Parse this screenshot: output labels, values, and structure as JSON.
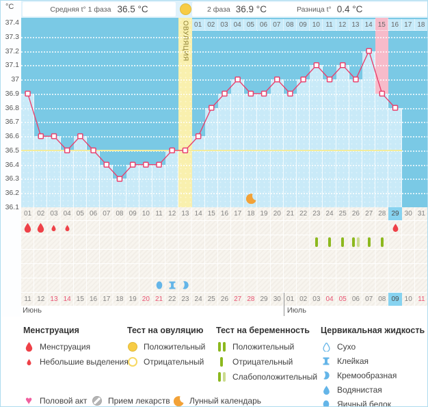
{
  "header": {
    "unit": "°C",
    "phase1_label": "Средняя t° 1 фаза",
    "phase1_value": "36.5 °C",
    "phase2_label": "2 фаза",
    "phase2_value": "36.9 °C",
    "diff_label": "Разница t°",
    "diff_value": "0.4 °C",
    "ovulation_label": "ОВУЛЯЦИЯ"
  },
  "chart_data": {
    "type": "line",
    "ylabel": "°C",
    "ylim": [
      36.1,
      37.4
    ],
    "y_ticks": [
      37.4,
      37.3,
      37.2,
      37.1,
      37,
      36.9,
      36.8,
      36.7,
      36.6,
      36.5,
      36.4,
      36.3,
      36.2,
      36.1
    ],
    "grid": "dotted-horizontal",
    "cycle_days": [
      "01",
      "02",
      "03",
      "04",
      "05",
      "06",
      "07",
      "08",
      "09",
      "10",
      "11",
      "12",
      "13",
      "14",
      "15",
      "16",
      "17",
      "18",
      "19",
      "20",
      "21",
      "22",
      "23",
      "24",
      "25",
      "26",
      "27",
      "28",
      "29",
      "30",
      "31"
    ],
    "temps": [
      36.9,
      36.6,
      36.6,
      36.5,
      36.6,
      36.5,
      36.4,
      36.3,
      36.4,
      36.4,
      36.4,
      36.5,
      36.5,
      36.6,
      36.8,
      36.9,
      37,
      36.9,
      36.9,
      37,
      36.9,
      37,
      37.1,
      37,
      37.1,
      37,
      37.2,
      36.9,
      36.8,
      null,
      null
    ],
    "coverline_temp": 36.5,
    "ovulation_day": 13,
    "expected_period_day": 28,
    "current_cycle_day": 29,
    "phase2_days": [
      "01",
      "02",
      "03",
      "04",
      "05",
      "06",
      "07",
      "08",
      "09",
      "10",
      "11",
      "12",
      "13",
      "14",
      "15",
      "16",
      "17",
      "18"
    ],
    "phase2_highlight": 15,
    "lunar_mark": {
      "day": 18
    }
  },
  "events": {
    "menstruation": [
      {
        "day": 1,
        "size": "large"
      },
      {
        "day": 2,
        "size": "large"
      },
      {
        "day": 3,
        "size": "small"
      },
      {
        "day": 4,
        "size": "small"
      },
      {
        "day": 29,
        "size": "medium"
      }
    ],
    "pregnancy_tests": [
      {
        "day": 23,
        "result": "negative"
      },
      {
        "day": 24,
        "result": "negative"
      },
      {
        "day": 25,
        "result": "negative"
      },
      {
        "day": 26,
        "result": "weak_positive"
      },
      {
        "day": 27,
        "result": "negative"
      },
      {
        "day": 28,
        "result": "negative"
      }
    ],
    "cervical_fluid": [
      {
        "day": 11,
        "type": "egg_white"
      },
      {
        "day": 12,
        "type": "sticky"
      },
      {
        "day": 13,
        "type": "creamy"
      }
    ]
  },
  "calendar": {
    "dates": [
      "11",
      "12",
      "13",
      "14",
      "15",
      "16",
      "17",
      "18",
      "19",
      "20",
      "21",
      "22",
      "23",
      "24",
      "25",
      "26",
      "27",
      "28",
      "29",
      "30",
      "01",
      "02",
      "03",
      "04",
      "05",
      "06",
      "07",
      "08",
      "09",
      "10",
      "11"
    ],
    "weekend_indices": [
      2,
      3,
      9,
      10,
      16,
      17,
      23,
      24,
      30
    ],
    "today_index": 28,
    "month_left_label": "Июнь",
    "month_right_label": "Июль",
    "month_divider_after_index": 19
  },
  "legend": {
    "groups": [
      {
        "title": "Менструация",
        "items": [
          {
            "icon": "drop-large",
            "label": "Менструация"
          },
          {
            "icon": "drop-small",
            "label": "Небольшие выделения"
          }
        ]
      },
      {
        "title": "Тест на овуляцию",
        "items": [
          {
            "icon": "circle-filled",
            "label": "Положительный"
          },
          {
            "icon": "circle-outline",
            "label": "Отрицательный"
          }
        ]
      },
      {
        "title": "Тест на беременность",
        "items": [
          {
            "icon": "bars-double",
            "label": "Положительный"
          },
          {
            "icon": "bar-single",
            "label": "Отрицательный"
          },
          {
            "icon": "bars-weak",
            "label": "Слабоположительный"
          }
        ]
      },
      {
        "title": "Цервикальная жидкость",
        "items": [
          {
            "icon": "drop-outline",
            "label": "Сухо"
          },
          {
            "icon": "ibeam",
            "label": "Клейкая"
          },
          {
            "icon": "comma",
            "label": "Кремообразная"
          },
          {
            "icon": "drop-filled",
            "label": "Водянистая"
          },
          {
            "icon": "oval-filled",
            "label": "Яичный белок"
          }
        ]
      }
    ],
    "extra": [
      {
        "icon": "heart",
        "label": "Половой акт"
      },
      {
        "icon": "pill",
        "label": "Прием лекарств"
      },
      {
        "icon": "moon",
        "label": "Лунный календарь"
      }
    ]
  },
  "colors": {
    "temp_line": "#E8406D",
    "coverline": "#F2EC9C",
    "chart_bg": "#7AC9E5",
    "chart_fill": "#C9EAF8",
    "ovulation_column": "#F9F0AE",
    "expected_period": "#F7BBCA",
    "today_highlight": "#87D3F0",
    "weekend_text": "#E85372",
    "menstruation": "#EE4148",
    "pregnancy_positive": "#8CB81E",
    "pregnancy_weak": "#CBDB8E",
    "cervical": "#64B5E8",
    "lunar": "#F2A238",
    "intercourse": "#F0609F",
    "ovulation_test": "#F7CC45"
  }
}
